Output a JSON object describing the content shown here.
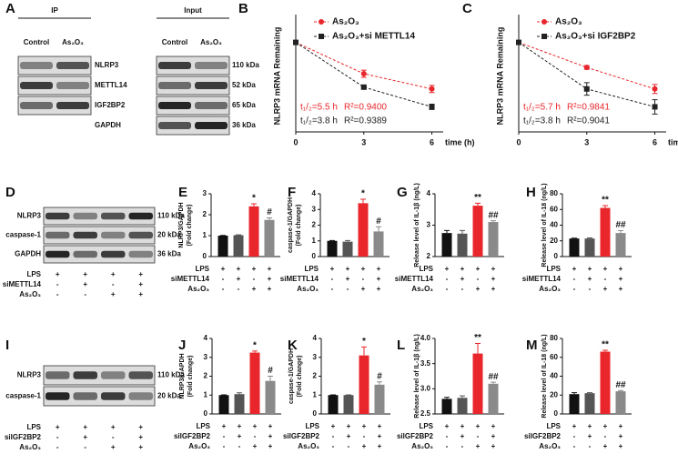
{
  "blots": [
    {
      "panel": "A",
      "groups": [
        {
          "title": "IP",
          "lanes": [
            "Control",
            "As₂O₃"
          ]
        },
        {
          "title": "Input",
          "lanes": [
            "Control",
            "As₂O₃"
          ]
        }
      ],
      "rows": [
        {
          "label": "NLRP3",
          "size": "110 kDa"
        },
        {
          "label": "METTL14",
          "size": "52 kDa"
        },
        {
          "label": "IGF2BP2",
          "size": "65 kDa"
        },
        {
          "label": "GAPDH",
          "size": "36 kDa"
        }
      ]
    },
    {
      "panel": "D",
      "rows": [
        {
          "label": "NLRP3",
          "size": "110 kDa"
        },
        {
          "label": "caspase-1",
          "size": "20 kDa"
        },
        {
          "label": "GAPDH",
          "size": "36 kDa"
        }
      ],
      "conditions": [
        {
          "label": "LPS",
          "signs": [
            "+",
            "+",
            "+",
            "+"
          ]
        },
        {
          "label": "siMETTL14",
          "signs": [
            "-",
            "+",
            "-",
            "+"
          ]
        },
        {
          "label": "As₂O₃",
          "signs": [
            "-",
            "-",
            "+",
            "+"
          ]
        }
      ]
    },
    {
      "panel": "I",
      "rows": [
        {
          "label": "NLRP3",
          "size": "110 kDa"
        },
        {
          "label": "caspase-1",
          "size": "20 kDa"
        }
      ],
      "conditions": [
        {
          "label": "LPS",
          "signs": [
            "+",
            "+",
            "+",
            "+"
          ]
        },
        {
          "label": "siIGF2BP2",
          "signs": [
            "-",
            "+",
            "-",
            "+"
          ]
        },
        {
          "label": "As₂O₃",
          "signs": [
            "-",
            "-",
            "+",
            "+"
          ]
        }
      ]
    }
  ],
  "chart_data": [
    {
      "type": "line",
      "panel": "B",
      "ylabel": "NLRP3 mRNA Remaining",
      "xlabel": "time (h)",
      "x": [
        0,
        3,
        6
      ],
      "xlim": [
        0,
        6.5
      ],
      "xticks": [
        0,
        3,
        6
      ],
      "ylim": [
        0,
        1.25
      ],
      "series": [
        {
          "name": "As₂O₃",
          "color": "#e8262b",
          "values": [
            1,
            0.65,
            0.48
          ],
          "errors": [
            0,
            0.04,
            0.04
          ],
          "annotations": [
            "t₁/₂=5.5 h",
            "R²=0.9400"
          ]
        },
        {
          "name": "As₂O₃+si METTL14",
          "color": "#222222",
          "values": [
            1,
            0.5,
            0.28
          ],
          "errors": [
            0,
            0.01,
            0.03
          ],
          "annotations": [
            "t₁/₂=3.8 h",
            "R²=0.9389"
          ]
        }
      ]
    },
    {
      "type": "line",
      "panel": "C",
      "ylabel": "NLRP3 mRNA Remaining",
      "xlabel": "time (h)",
      "x": [
        0,
        3,
        6
      ],
      "xlim": [
        0,
        6.5
      ],
      "xticks": [
        0,
        3,
        6
      ],
      "ylim": [
        0,
        1.25
      ],
      "series": [
        {
          "name": "As₂O₃",
          "color": "#e8262b",
          "values": [
            1,
            0.72,
            0.48
          ],
          "errors": [
            0,
            0.02,
            0.05
          ],
          "annotations": [
            "t₁/₂=5.7 h",
            "R²=0.9841"
          ]
        },
        {
          "name": "As₂O₃+si IGF2BP2",
          "color": "#222222",
          "values": [
            1,
            0.48,
            0.28
          ],
          "errors": [
            0,
            0.07,
            0.08
          ],
          "annotations": [
            "t₁/₂=3.8 h",
            "R²=0.9041"
          ]
        }
      ]
    },
    {
      "type": "bar",
      "panel": "E",
      "ylabel": [
        "NLRP3/GAPDH",
        "(Fold change)"
      ],
      "values": [
        1,
        1.02,
        2.4,
        1.75
      ],
      "errors": [
        0.01,
        0.02,
        0.12,
        0.1
      ],
      "annotations": [
        null,
        null,
        "*",
        "#"
      ],
      "colors": [
        "#111111",
        "#555555",
        "#e8262b",
        "#8a8a8a"
      ],
      "ylim": [
        0,
        3
      ],
      "yticks": [
        0,
        1,
        2,
        3
      ],
      "conditions": [
        {
          "label": "LPS",
          "signs": [
            "+",
            "+",
            "+",
            "+"
          ]
        },
        {
          "label": "siMETTL14",
          "signs": [
            "-",
            "+",
            "-",
            "+"
          ]
        },
        {
          "label": "As₂O₃",
          "signs": [
            "-",
            "-",
            "+",
            "+"
          ]
        }
      ]
    },
    {
      "type": "bar",
      "panel": "F",
      "ylabel": [
        "caspase-1/GAPDH",
        "(Fold change)"
      ],
      "values": [
        1,
        0.95,
        3.4,
        1.6
      ],
      "errors": [
        0.02,
        0.07,
        0.25,
        0.3
      ],
      "annotations": [
        null,
        null,
        "*",
        "#"
      ],
      "colors": [
        "#111111",
        "#555555",
        "#e8262b",
        "#8a8a8a"
      ],
      "ylim": [
        0,
        4
      ],
      "yticks": [
        0,
        1,
        2,
        3,
        4
      ],
      "conditions": [
        {
          "label": "LPS",
          "signs": [
            "+",
            "+",
            "+",
            "+"
          ]
        },
        {
          "label": "siMETTL14",
          "signs": [
            "-",
            "+",
            "-",
            "+"
          ]
        },
        {
          "label": "As₂O₃",
          "signs": [
            "-",
            "-",
            "+",
            "+"
          ]
        }
      ]
    },
    {
      "type": "bar",
      "panel": "G",
      "ylabel": [
        "Release level of IL-1β (ng/L)"
      ],
      "values": [
        2.75,
        2.73,
        3.62,
        3.1
      ],
      "errors": [
        0.08,
        0.1,
        0.08,
        0.04
      ],
      "annotations": [
        null,
        null,
        "**",
        "##"
      ],
      "colors": [
        "#111111",
        "#555555",
        "#e8262b",
        "#8a8a8a"
      ],
      "ylim": [
        2,
        4
      ],
      "yticks": [
        2,
        3,
        4
      ],
      "conditions": [
        {
          "label": "LPS",
          "signs": [
            "+",
            "+",
            "+",
            "+"
          ]
        },
        {
          "label": "siMETTL14",
          "signs": [
            "-",
            "+",
            "-",
            "+"
          ]
        },
        {
          "label": "As₂O₃",
          "signs": [
            "-",
            "-",
            "+",
            "+"
          ]
        }
      ]
    },
    {
      "type": "bar",
      "panel": "H",
      "ylabel": [
        "Release level of IL-18 (ng/L)"
      ],
      "values": [
        23,
        23,
        62,
        30
      ],
      "errors": [
        0.5,
        0.8,
        3,
        3
      ],
      "annotations": [
        null,
        null,
        "**",
        "##"
      ],
      "colors": [
        "#111111",
        "#555555",
        "#e8262b",
        "#8a8a8a"
      ],
      "ylim": [
        0,
        80
      ],
      "yticks": [
        0,
        20,
        40,
        60,
        80
      ],
      "conditions": [
        {
          "label": "LPS",
          "signs": [
            "+",
            "+",
            "+",
            "+"
          ]
        },
        {
          "label": "siMETTL14",
          "signs": [
            "-",
            "+",
            "-",
            "+"
          ]
        },
        {
          "label": "As₂O₃",
          "signs": [
            "-",
            "-",
            "+",
            "+"
          ]
        }
      ]
    },
    {
      "type": "bar",
      "panel": "J",
      "ylabel": [
        "NLRP3/GAPDH",
        "(Fold change)"
      ],
      "values": [
        1,
        1.05,
        3.25,
        1.75
      ],
      "errors": [
        0.01,
        0.07,
        0.08,
        0.25
      ],
      "annotations": [
        null,
        null,
        "*",
        "#"
      ],
      "colors": [
        "#111111",
        "#555555",
        "#e8262b",
        "#8a8a8a"
      ],
      "ylim": [
        0,
        4
      ],
      "yticks": [
        0,
        1,
        2,
        3,
        4
      ],
      "conditions": [
        {
          "label": "LPS",
          "signs": [
            "+",
            "+",
            "+",
            "+"
          ]
        },
        {
          "label": "siIGF2BP2",
          "signs": [
            "-",
            "+",
            "-",
            "+"
          ]
        },
        {
          "label": "As₂O₃",
          "signs": [
            "-",
            "-",
            "+",
            "+"
          ]
        }
      ]
    },
    {
      "type": "bar",
      "panel": "K",
      "ylabel": [
        "caspase-1/GAPDH",
        "(Fold change)"
      ],
      "values": [
        1,
        1,
        3.1,
        1.55
      ],
      "errors": [
        0.01,
        0.01,
        0.45,
        0.15
      ],
      "annotations": [
        null,
        null,
        "*",
        "#"
      ],
      "colors": [
        "#111111",
        "#555555",
        "#e8262b",
        "#8a8a8a"
      ],
      "ylim": [
        0,
        4
      ],
      "yticks": [
        0,
        1,
        2,
        3,
        4
      ],
      "conditions": [
        {
          "label": "LPS",
          "signs": [
            "+",
            "+",
            "+",
            "+"
          ]
        },
        {
          "label": "siIGF2BP2",
          "signs": [
            "-",
            "+",
            "-",
            "+"
          ]
        },
        {
          "label": "As₂O₃",
          "signs": [
            "-",
            "-",
            "+",
            "+"
          ]
        }
      ]
    },
    {
      "type": "bar",
      "panel": "L",
      "ylabel": [
        "Release level of IL-1β (ng/L)"
      ],
      "values": [
        2.8,
        2.82,
        3.7,
        3.1
      ],
      "errors": [
        0.03,
        0.04,
        0.2,
        0.03
      ],
      "annotations": [
        null,
        null,
        "**",
        "##"
      ],
      "colors": [
        "#111111",
        "#555555",
        "#e8262b",
        "#8a8a8a"
      ],
      "ylim": [
        2.5,
        4
      ],
      "yticks": [
        {
          "value": 2.5,
          "label": "2.5"
        },
        {
          "value": 3,
          "label": "3.0"
        },
        {
          "value": 3.5,
          "label": "3.5"
        },
        {
          "value": 4,
          "label": "4.0"
        }
      ],
      "conditions": [
        {
          "label": "LPS",
          "signs": [
            "+",
            "+",
            "+",
            "+"
          ]
        },
        {
          "label": "siIGF2BP2",
          "signs": [
            "-",
            "+",
            "-",
            "+"
          ]
        },
        {
          "label": "As₂O₃",
          "signs": [
            "-",
            "-",
            "+",
            "+"
          ]
        }
      ]
    },
    {
      "type": "bar",
      "panel": "M",
      "ylabel": [
        "Release level of IL-18 (ng/L)"
      ],
      "values": [
        21,
        22,
        66,
        24
      ],
      "errors": [
        1.5,
        0.5,
        1.5,
        0.8
      ],
      "annotations": [
        null,
        null,
        "**",
        "##"
      ],
      "colors": [
        "#111111",
        "#555555",
        "#e8262b",
        "#8a8a8a"
      ],
      "ylim": [
        0,
        80
      ],
      "yticks": [
        0,
        20,
        40,
        60,
        80
      ],
      "conditions": [
        {
          "label": "LPS",
          "signs": [
            "+",
            "+",
            "+",
            "+"
          ]
        },
        {
          "label": "siIGF2BP2",
          "signs": [
            "-",
            "+",
            "-",
            "+"
          ]
        },
        {
          "label": "As₂O₃",
          "signs": [
            "-",
            "-",
            "+",
            "+"
          ]
        }
      ]
    }
  ]
}
